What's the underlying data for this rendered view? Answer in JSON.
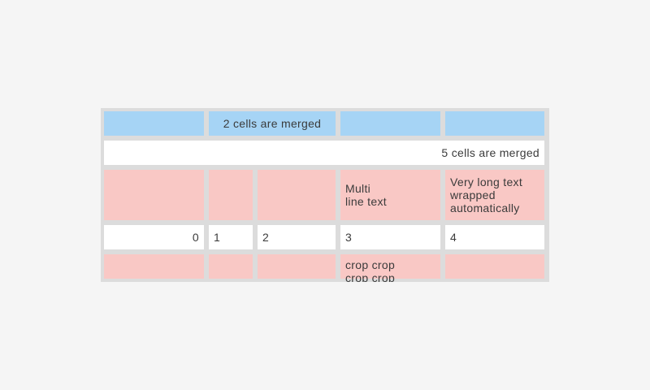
{
  "page": {
    "background": "#f5f5f5"
  },
  "table": {
    "colors": {
      "header_blue": "#a6d4f5",
      "highlight_pink": "#f9c8c5",
      "cell_white": "#ffffff",
      "frame_gray": "#dcdcdc",
      "text": "#3b3b3b"
    },
    "rows": [
      {
        "cells": [
          {
            "text": "",
            "bg": "blue",
            "span": 1,
            "align": "left"
          },
          {
            "text": "2 cells are merged",
            "bg": "blue",
            "span": 2,
            "align": "center"
          },
          {
            "text": "",
            "bg": "blue",
            "span": 1,
            "align": "left"
          },
          {
            "text": "",
            "bg": "blue",
            "span": 1,
            "align": "left"
          }
        ]
      },
      {
        "cells": [
          {
            "text": "5 cells are merged",
            "bg": "white",
            "span": 5,
            "align": "right"
          }
        ]
      },
      {
        "cells": [
          {
            "text": "",
            "bg": "pink",
            "span": 1,
            "align": "left"
          },
          {
            "text": "",
            "bg": "pink",
            "span": 1,
            "align": "left"
          },
          {
            "text": "",
            "bg": "pink",
            "span": 1,
            "align": "left"
          },
          {
            "text": "Multi\nline text",
            "bg": "pink",
            "span": 1,
            "align": "left"
          },
          {
            "text": "Very long text wrapped automatically",
            "bg": "pink",
            "span": 1,
            "align": "left"
          }
        ]
      },
      {
        "cells": [
          {
            "text": "0",
            "bg": "white",
            "span": 1,
            "align": "right"
          },
          {
            "text": "1",
            "bg": "white",
            "span": 1,
            "align": "left"
          },
          {
            "text": "2",
            "bg": "white",
            "span": 1,
            "align": "left"
          },
          {
            "text": "3",
            "bg": "white",
            "span": 1,
            "align": "left"
          },
          {
            "text": "4",
            "bg": "white",
            "span": 1,
            "align": "left"
          }
        ]
      },
      {
        "cells": [
          {
            "text": "",
            "bg": "pink",
            "span": 1,
            "align": "left"
          },
          {
            "text": "",
            "bg": "pink",
            "span": 1,
            "align": "left"
          },
          {
            "text": "",
            "bg": "pink",
            "span": 1,
            "align": "left"
          },
          {
            "text": "crop crop\ncrop crop",
            "bg": "pink",
            "span": 1,
            "align": "left",
            "crop": true
          },
          {
            "text": "",
            "bg": "pink",
            "span": 1,
            "align": "left"
          }
        ]
      }
    ]
  }
}
